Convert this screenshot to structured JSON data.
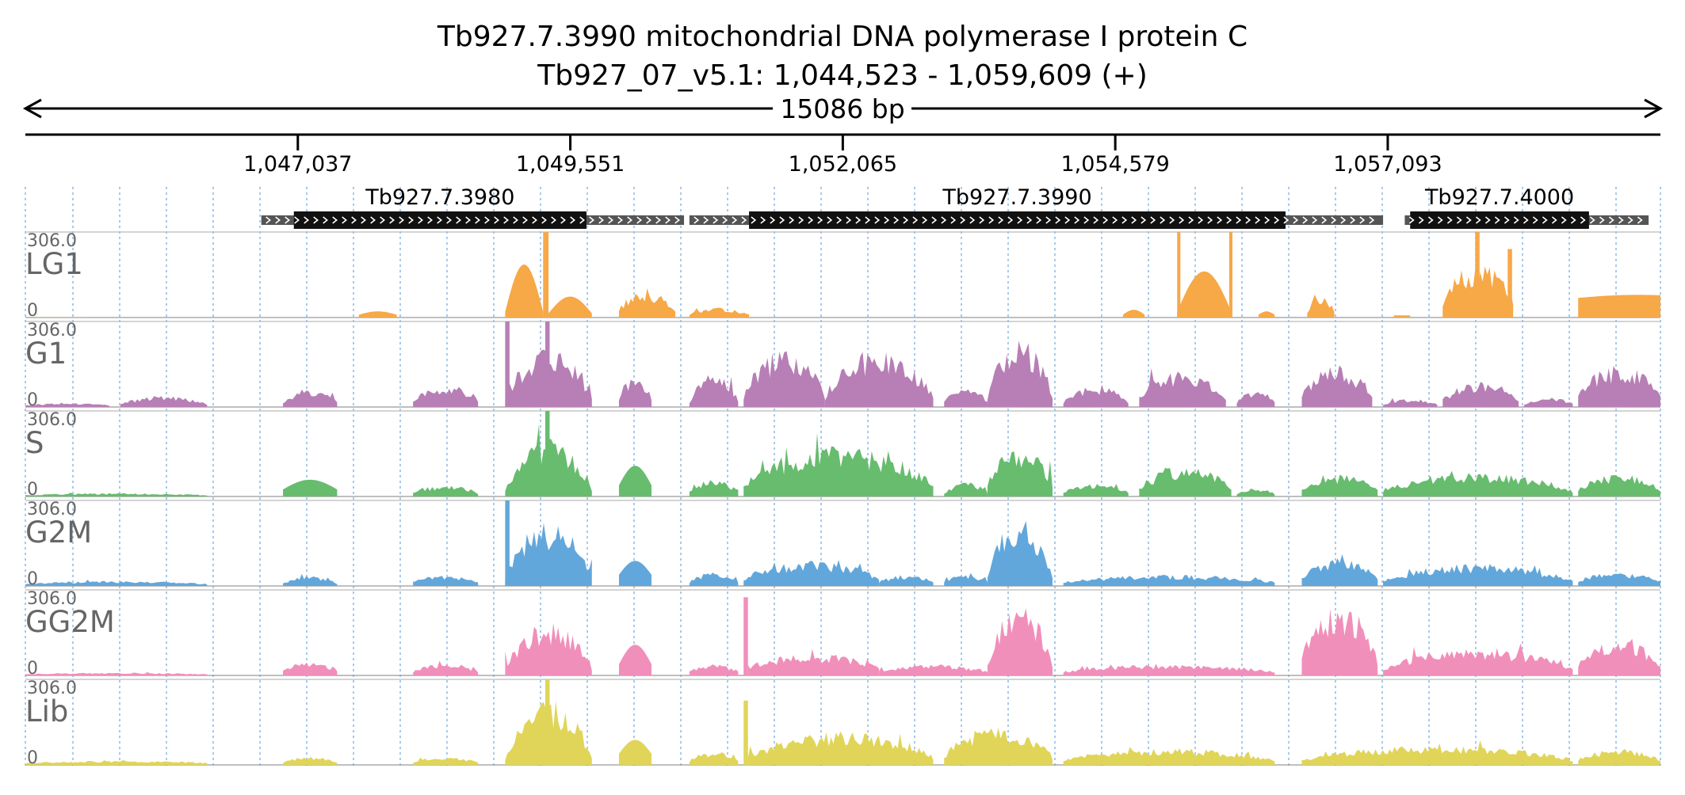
{
  "chart_data": {
    "type": "area",
    "title": "Tb927.7.3990  mitochondrial DNA polymerase I protein C",
    "subtitle": "Tb927_07_v5.1: 1,044,523 - 1,059,609 (+)",
    "span_label": "15086 bp",
    "x_range": [
      1044523,
      1059609
    ],
    "x_ticks": [
      {
        "value": 1047037,
        "label": "1,047,037"
      },
      {
        "value": 1049551,
        "label": "1,049,551"
      },
      {
        "value": 1052065,
        "label": "1,052,065"
      },
      {
        "value": 1054579,
        "label": "1,054,579"
      },
      {
        "value": 1057093,
        "label": "1,057,093"
      }
    ],
    "genes": [
      {
        "name": "Tb927.7.3980",
        "utr5": [
          1046700,
          1047000
        ],
        "cds": [
          1047000,
          1049700
        ],
        "utr3": [
          1049700,
          1050600
        ]
      },
      {
        "name": "Tb927.7.3990",
        "utr5": [
          1050650,
          1051200
        ],
        "cds": [
          1051200,
          1056150
        ],
        "utr3": [
          1056150,
          1057050
        ]
      },
      {
        "name": "Tb927.7.4000",
        "utr5": [
          1057250,
          1057300
        ],
        "cds": [
          1057300,
          1058950
        ],
        "utr3": [
          1058950,
          1059500
        ]
      }
    ],
    "ylim": [
      0,
      306
    ],
    "y_max_label": "306.0",
    "y_min_label": "0",
    "tracks": [
      {
        "name": "LG1",
        "color": "#f7a847",
        "segments": [
          {
            "start": 1044523,
            "end": 1045200,
            "shape": "dome",
            "height": 1,
            "edge": 0
          },
          {
            "start": 1047600,
            "end": 1047950,
            "shape": "dome",
            "height": 22,
            "edge": 10
          },
          {
            "start": 1048950,
            "end": 1049300,
            "shape": "dome",
            "height": 190,
            "edge": 20
          },
          {
            "start": 1049300,
            "end": 1049350,
            "shape": "spike",
            "height": 306,
            "edge": 0
          },
          {
            "start": 1049350,
            "end": 1049750,
            "shape": "dome",
            "height": 75,
            "edge": 15
          },
          {
            "start": 1050000,
            "end": 1050520,
            "shape": "bumpy",
            "height": 95,
            "edge": 35
          },
          {
            "start": 1050650,
            "end": 1051200,
            "shape": "bumpy",
            "height": 35,
            "edge": 12
          },
          {
            "start": 1054650,
            "end": 1054850,
            "shape": "dome",
            "height": 28,
            "edge": 10
          },
          {
            "start": 1055150,
            "end": 1055650,
            "shape": "dome",
            "height": 165,
            "edge": 20
          },
          {
            "start": 1055150,
            "end": 1055180,
            "shape": "spike",
            "height": 306,
            "edge": 0
          },
          {
            "start": 1055630,
            "end": 1055660,
            "shape": "spike",
            "height": 306,
            "edge": 0
          },
          {
            "start": 1055900,
            "end": 1056050,
            "shape": "dome",
            "height": 22,
            "edge": 10
          },
          {
            "start": 1056350,
            "end": 1056600,
            "shape": "bumpy",
            "height": 75,
            "edge": 25
          },
          {
            "start": 1057150,
            "end": 1057300,
            "shape": "spike",
            "height": 8,
            "edge": 0
          },
          {
            "start": 1057600,
            "end": 1058250,
            "shape": "bumpy",
            "height": 195,
            "edge": 70
          },
          {
            "start": 1057900,
            "end": 1057940,
            "shape": "spike",
            "height": 306,
            "edge": 0
          },
          {
            "start": 1058200,
            "end": 1058240,
            "shape": "spike",
            "height": 245,
            "edge": 0
          },
          {
            "start": 1058850,
            "end": 1059609,
            "shape": "ramp",
            "height": 80,
            "edge": 70
          }
        ]
      },
      {
        "name": "G1",
        "color": "#b77fb6",
        "segments": [
          {
            "start": 1044523,
            "end": 1045300,
            "shape": "bumpy",
            "height": 14,
            "edge": 6
          },
          {
            "start": 1045400,
            "end": 1046200,
            "shape": "bumpy",
            "height": 40,
            "edge": 10
          },
          {
            "start": 1046900,
            "end": 1047400,
            "shape": "bumpy",
            "height": 60,
            "edge": 20
          },
          {
            "start": 1048100,
            "end": 1048700,
            "shape": "bumpy",
            "height": 80,
            "edge": 30
          },
          {
            "start": 1048950,
            "end": 1049750,
            "shape": "bumpy",
            "height": 210,
            "edge": 30
          },
          {
            "start": 1048950,
            "end": 1048990,
            "shape": "spike",
            "height": 306,
            "edge": 0
          },
          {
            "start": 1049320,
            "end": 1049360,
            "shape": "spike",
            "height": 306,
            "edge": 0
          },
          {
            "start": 1050000,
            "end": 1050300,
            "shape": "bumpy",
            "height": 110,
            "edge": 40
          },
          {
            "start": 1050650,
            "end": 1051100,
            "shape": "bumpy",
            "height": 120,
            "edge": 20
          },
          {
            "start": 1051150,
            "end": 1051900,
            "shape": "bumpy",
            "height": 210,
            "edge": 40
          },
          {
            "start": 1051900,
            "end": 1052900,
            "shape": "bumpy",
            "height": 200,
            "edge": 40
          },
          {
            "start": 1053000,
            "end": 1053400,
            "shape": "bumpy",
            "height": 70,
            "edge": 20
          },
          {
            "start": 1053400,
            "end": 1054000,
            "shape": "bumpy",
            "height": 250,
            "edge": 40
          },
          {
            "start": 1054100,
            "end": 1054700,
            "shape": "bumpy",
            "height": 75,
            "edge": 20
          },
          {
            "start": 1054800,
            "end": 1055600,
            "shape": "bumpy",
            "height": 130,
            "edge": 40
          },
          {
            "start": 1055700,
            "end": 1056050,
            "shape": "bumpy",
            "height": 60,
            "edge": 20
          },
          {
            "start": 1056300,
            "end": 1056950,
            "shape": "bumpy",
            "height": 150,
            "edge": 40
          },
          {
            "start": 1057050,
            "end": 1057550,
            "shape": "bumpy",
            "height": 30,
            "edge": 10
          },
          {
            "start": 1057600,
            "end": 1058300,
            "shape": "bumpy",
            "height": 90,
            "edge": 30
          },
          {
            "start": 1058350,
            "end": 1058800,
            "shape": "bumpy",
            "height": 35,
            "edge": 12
          },
          {
            "start": 1058850,
            "end": 1059609,
            "shape": "bumpy",
            "height": 150,
            "edge": 50
          }
        ]
      },
      {
        "name": "S",
        "color": "#67bc6e",
        "segments": [
          {
            "start": 1044523,
            "end": 1046200,
            "shape": "bumpy",
            "height": 12,
            "edge": 5
          },
          {
            "start": 1046900,
            "end": 1047400,
            "shape": "dome",
            "height": 60,
            "edge": 25
          },
          {
            "start": 1048100,
            "end": 1048700,
            "shape": "bumpy",
            "height": 40,
            "edge": 15
          },
          {
            "start": 1048950,
            "end": 1049750,
            "shape": "bumpy",
            "height": 200,
            "edge": 30
          },
          {
            "start": 1049320,
            "end": 1049360,
            "shape": "spike",
            "height": 306,
            "edge": 0
          },
          {
            "start": 1050000,
            "end": 1050300,
            "shape": "dome",
            "height": 110,
            "edge": 40
          },
          {
            "start": 1050650,
            "end": 1051100,
            "shape": "bumpy",
            "height": 60,
            "edge": 20
          },
          {
            "start": 1051150,
            "end": 1052900,
            "shape": "bumpy",
            "height": 180,
            "edge": 40
          },
          {
            "start": 1053000,
            "end": 1053400,
            "shape": "bumpy",
            "height": 50,
            "edge": 15
          },
          {
            "start": 1053400,
            "end": 1054000,
            "shape": "bumpy",
            "height": 180,
            "edge": 40
          },
          {
            "start": 1054100,
            "end": 1054700,
            "shape": "bumpy",
            "height": 45,
            "edge": 15
          },
          {
            "start": 1054800,
            "end": 1055650,
            "shape": "bumpy",
            "height": 110,
            "edge": 30
          },
          {
            "start": 1055700,
            "end": 1056050,
            "shape": "bumpy",
            "height": 30,
            "edge": 10
          },
          {
            "start": 1056300,
            "end": 1057000,
            "shape": "bumpy",
            "height": 80,
            "edge": 25
          },
          {
            "start": 1057050,
            "end": 1058800,
            "shape": "bumpy",
            "height": 85,
            "edge": 20
          },
          {
            "start": 1058850,
            "end": 1059609,
            "shape": "bumpy",
            "height": 80,
            "edge": 30
          }
        ]
      },
      {
        "name": "G2M",
        "color": "#62a7db",
        "segments": [
          {
            "start": 1044523,
            "end": 1046200,
            "shape": "bumpy",
            "height": 18,
            "edge": 8
          },
          {
            "start": 1046900,
            "end": 1047400,
            "shape": "bumpy",
            "height": 35,
            "edge": 12
          },
          {
            "start": 1048100,
            "end": 1048700,
            "shape": "bumpy",
            "height": 40,
            "edge": 15
          },
          {
            "start": 1048950,
            "end": 1049750,
            "shape": "bumpy",
            "height": 230,
            "edge": 30
          },
          {
            "start": 1048950,
            "end": 1048990,
            "shape": "spike",
            "height": 306,
            "edge": 0
          },
          {
            "start": 1050000,
            "end": 1050300,
            "shape": "dome",
            "height": 90,
            "edge": 40
          },
          {
            "start": 1050650,
            "end": 1051100,
            "shape": "bumpy",
            "height": 50,
            "edge": 15
          },
          {
            "start": 1051150,
            "end": 1052400,
            "shape": "bumpy",
            "height": 90,
            "edge": 30
          },
          {
            "start": 1052400,
            "end": 1052900,
            "shape": "bumpy",
            "height": 40,
            "edge": 15
          },
          {
            "start": 1053000,
            "end": 1053400,
            "shape": "bumpy",
            "height": 40,
            "edge": 15
          },
          {
            "start": 1053400,
            "end": 1054000,
            "shape": "bumpy",
            "height": 240,
            "edge": 40
          },
          {
            "start": 1054100,
            "end": 1056050,
            "shape": "bumpy",
            "height": 40,
            "edge": 15
          },
          {
            "start": 1056300,
            "end": 1057000,
            "shape": "bumpy",
            "height": 100,
            "edge": 30
          },
          {
            "start": 1057050,
            "end": 1058800,
            "shape": "bumpy",
            "height": 80,
            "edge": 20
          },
          {
            "start": 1058850,
            "end": 1059609,
            "shape": "bumpy",
            "height": 50,
            "edge": 20
          }
        ]
      },
      {
        "name": "GG2M",
        "color": "#f18fbb",
        "segments": [
          {
            "start": 1044523,
            "end": 1046200,
            "shape": "bumpy",
            "height": 10,
            "edge": 5
          },
          {
            "start": 1046900,
            "end": 1047400,
            "shape": "bumpy",
            "height": 50,
            "edge": 20
          },
          {
            "start": 1048100,
            "end": 1048700,
            "shape": "bumpy",
            "height": 45,
            "edge": 15
          },
          {
            "start": 1048950,
            "end": 1049750,
            "shape": "bumpy",
            "height": 190,
            "edge": 25
          },
          {
            "start": 1050000,
            "end": 1050300,
            "shape": "dome",
            "height": 110,
            "edge": 40
          },
          {
            "start": 1050650,
            "end": 1051100,
            "shape": "bumpy",
            "height": 40,
            "edge": 15
          },
          {
            "start": 1051150,
            "end": 1051190,
            "shape": "spike",
            "height": 280,
            "edge": 0
          },
          {
            "start": 1051190,
            "end": 1052400,
            "shape": "bumpy",
            "height": 80,
            "edge": 30
          },
          {
            "start": 1052400,
            "end": 1053400,
            "shape": "bumpy",
            "height": 40,
            "edge": 15
          },
          {
            "start": 1053400,
            "end": 1054000,
            "shape": "bumpy",
            "height": 260,
            "edge": 40
          },
          {
            "start": 1054100,
            "end": 1056050,
            "shape": "bumpy",
            "height": 40,
            "edge": 15
          },
          {
            "start": 1056300,
            "end": 1057000,
            "shape": "bumpy",
            "height": 260,
            "edge": 60
          },
          {
            "start": 1057050,
            "end": 1058800,
            "shape": "bumpy",
            "height": 100,
            "edge": 25
          },
          {
            "start": 1058850,
            "end": 1059609,
            "shape": "bumpy",
            "height": 130,
            "edge": 40
          }
        ]
      },
      {
        "name": "Lib",
        "color": "#e0d558",
        "segments": [
          {
            "start": 1044523,
            "end": 1046200,
            "shape": "bumpy",
            "height": 15,
            "edge": 8
          },
          {
            "start": 1046900,
            "end": 1047400,
            "shape": "bumpy",
            "height": 30,
            "edge": 10
          },
          {
            "start": 1048100,
            "end": 1048700,
            "shape": "bumpy",
            "height": 30,
            "edge": 10
          },
          {
            "start": 1048950,
            "end": 1049750,
            "shape": "bumpy",
            "height": 230,
            "edge": 30
          },
          {
            "start": 1049320,
            "end": 1049360,
            "shape": "spike",
            "height": 306,
            "edge": 0
          },
          {
            "start": 1050000,
            "end": 1050300,
            "shape": "dome",
            "height": 90,
            "edge": 40
          },
          {
            "start": 1050650,
            "end": 1051100,
            "shape": "bumpy",
            "height": 50,
            "edge": 15
          },
          {
            "start": 1051150,
            "end": 1051190,
            "shape": "spike",
            "height": 230,
            "edge": 0
          },
          {
            "start": 1051190,
            "end": 1052900,
            "shape": "bumpy",
            "height": 120,
            "edge": 30
          },
          {
            "start": 1053000,
            "end": 1054000,
            "shape": "bumpy",
            "height": 140,
            "edge": 30
          },
          {
            "start": 1054100,
            "end": 1056050,
            "shape": "bumpy",
            "height": 60,
            "edge": 20
          },
          {
            "start": 1056300,
            "end": 1058800,
            "shape": "bumpy",
            "height": 70,
            "edge": 20
          },
          {
            "start": 1058850,
            "end": 1059609,
            "shape": "bumpy",
            "height": 60,
            "edge": 20
          }
        ]
      }
    ]
  }
}
